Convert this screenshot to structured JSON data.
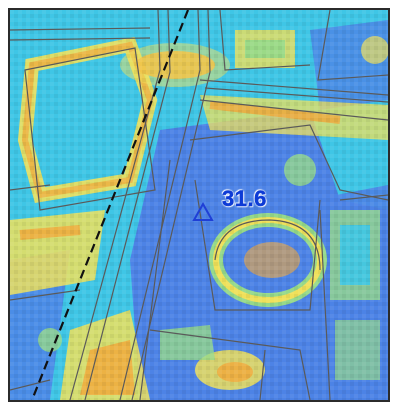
{
  "map": {
    "marker": {
      "label": "31.6",
      "symbol": "triangle",
      "color": "#1f3fd6"
    },
    "colors": {
      "cyan": "#3fc6e6",
      "blue": "#4d83e6",
      "blue_dark": "#3e6fd9",
      "green": "#96d98a",
      "yellow": "#efe05a",
      "orange": "#f1a83a",
      "outline": "#5a5a5a",
      "rail_line": "#111111"
    }
  }
}
